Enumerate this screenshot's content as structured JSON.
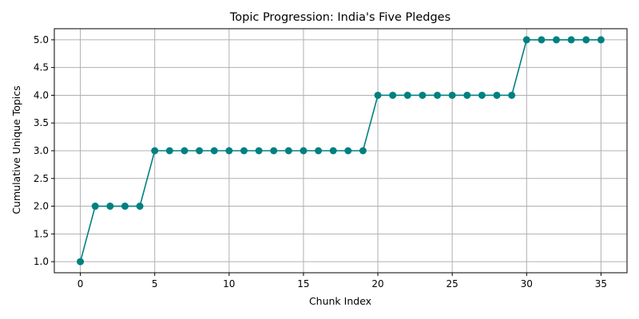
{
  "chart_data": {
    "type": "line",
    "title": "Topic Progression: India's Five Pledges",
    "xlabel": "Chunk Index",
    "ylabel": "Cumulative Unique Topics",
    "xlim": [
      -1.75,
      36.75
    ],
    "ylim": [
      0.8,
      5.2
    ],
    "xticks": [
      0,
      5,
      10,
      15,
      20,
      25,
      30,
      35
    ],
    "xtick_labels": [
      "0",
      "5",
      "10",
      "15",
      "20",
      "25",
      "30",
      "35"
    ],
    "yticks": [
      1.0,
      1.5,
      2.0,
      2.5,
      3.0,
      3.5,
      4.0,
      4.5,
      5.0
    ],
    "ytick_labels": [
      "1.0",
      "1.5",
      "2.0",
      "2.5",
      "3.0",
      "3.5",
      "4.0",
      "4.5",
      "5.0"
    ],
    "grid": true,
    "series": [
      {
        "color": "#008080",
        "marker": "circle",
        "x": [
          0,
          1,
          2,
          3,
          4,
          5,
          6,
          7,
          8,
          9,
          10,
          11,
          12,
          13,
          14,
          15,
          16,
          17,
          18,
          19,
          20,
          21,
          22,
          23,
          24,
          25,
          26,
          27,
          28,
          29,
          30,
          31,
          32,
          33,
          34,
          35
        ],
        "y": [
          1,
          2,
          2,
          2,
          2,
          3,
          3,
          3,
          3,
          3,
          3,
          3,
          3,
          3,
          3,
          3,
          3,
          3,
          3,
          3,
          4,
          4,
          4,
          4,
          4,
          4,
          4,
          4,
          4,
          4,
          5,
          5,
          5,
          5,
          5,
          5
        ]
      }
    ]
  }
}
